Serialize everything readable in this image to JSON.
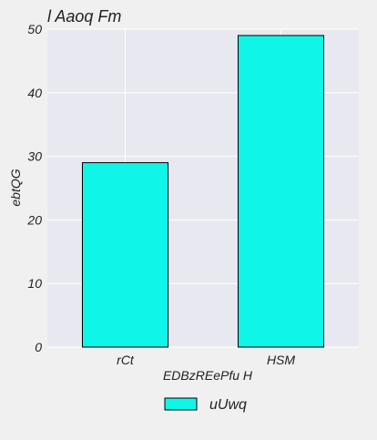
{
  "chart_data": {
    "type": "bar",
    "title": "l Aaoq Fm",
    "xlabel": "EDBzREePfu H",
    "ylabel": "ebtQG",
    "categories": [
      "rCt",
      "HSM"
    ],
    "series": [
      {
        "name": "uUwq",
        "values": [
          29,
          49
        ],
        "color": "#0ff5e8"
      }
    ],
    "ylim": [
      0,
      50
    ],
    "yticks": [
      0,
      10,
      20,
      30,
      40,
      50
    ],
    "grid": true,
    "legend_position": "bottom-center",
    "plot_background": "#e8e8f0",
    "page_background": "#f0f0f0"
  }
}
